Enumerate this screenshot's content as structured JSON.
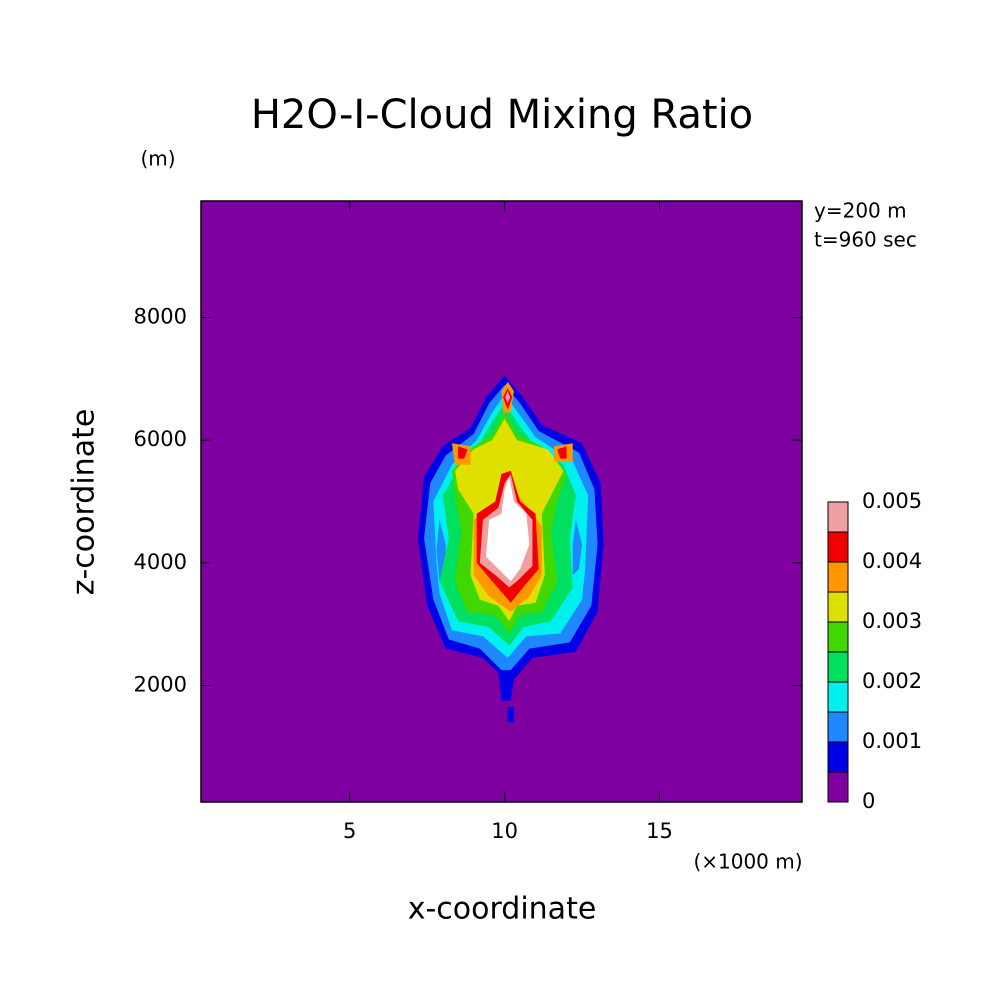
{
  "chart_data": {
    "type": "contour",
    "title": "H2O-I-Cloud Mixing Ratio",
    "x_label": "x-coordinate",
    "y_label": "z-coordinate",
    "x_unit": "(×1000 m)",
    "y_unit": "(m)",
    "annotations": [
      "y=200 m",
      "t=960 sec"
    ],
    "xlim": [
      0.2,
      19.6
    ],
    "ylim": [
      100,
      9900
    ],
    "xticks": [
      5,
      10,
      15
    ],
    "yticks": [
      2000,
      4000,
      6000,
      8000
    ],
    "levels": [
      0,
      0.0005,
      0.001,
      0.0015,
      0.002,
      0.0025,
      0.003,
      0.0035,
      0.004,
      0.0045,
      0.005
    ],
    "colors": [
      "#7f00a0",
      "#0000e6",
      "#1e88ff",
      "#00f0f0",
      "#00e060",
      "#40d800",
      "#e0e000",
      "#ff9800",
      "#f00000",
      "#f0a0a0",
      "#ffffff"
    ],
    "colorbar_ticks": [
      0,
      0.001,
      0.002,
      0.003,
      0.004,
      0.005
    ],
    "contours": [
      {
        "level": 0.0005,
        "points": [
          [
            10,
            7050
          ],
          [
            10.6,
            6700
          ],
          [
            11.2,
            6250
          ],
          [
            12.5,
            5950
          ],
          [
            13.1,
            5300
          ],
          [
            13.2,
            4300
          ],
          [
            13,
            3200
          ],
          [
            12.3,
            2550
          ],
          [
            10.9,
            2450
          ],
          [
            10.3,
            2100
          ],
          [
            10.2,
            1750
          ],
          [
            9.9,
            1750
          ],
          [
            9.8,
            2200
          ],
          [
            9.3,
            2450
          ],
          [
            8.1,
            2600
          ],
          [
            7.5,
            3300
          ],
          [
            7.2,
            4400
          ],
          [
            7.4,
            5400
          ],
          [
            8,
            5900
          ],
          [
            8.9,
            6200
          ],
          [
            9.4,
            6700
          ]
        ]
      },
      {
        "level": 0.0005,
        "points": [
          [
            10.1,
            1650
          ],
          [
            10.3,
            1650
          ],
          [
            10.3,
            1400
          ],
          [
            10.1,
            1400
          ]
        ]
      },
      {
        "level": 0.001,
        "points": [
          [
            10,
            6900
          ],
          [
            10.5,
            6600
          ],
          [
            11.1,
            6150
          ],
          [
            12.4,
            5800
          ],
          [
            12.9,
            5200
          ],
          [
            13,
            4300
          ],
          [
            12.8,
            3300
          ],
          [
            12.1,
            2700
          ],
          [
            10.8,
            2600
          ],
          [
            10.2,
            2250
          ],
          [
            9.9,
            2250
          ],
          [
            9.2,
            2600
          ],
          [
            8.2,
            2750
          ],
          [
            7.7,
            3400
          ],
          [
            7.4,
            4400
          ],
          [
            7.6,
            5300
          ],
          [
            8.1,
            5750
          ],
          [
            9,
            6100
          ],
          [
            9.5,
            6600
          ]
        ]
      },
      {
        "level": 0.0015,
        "points": [
          [
            10,
            6750
          ],
          [
            10.5,
            6400
          ],
          [
            11,
            6050
          ],
          [
            12.2,
            5650
          ],
          [
            12.7,
            5100
          ],
          [
            12.6,
            3900
          ],
          [
            12.5,
            3400
          ],
          [
            11.8,
            2850
          ],
          [
            10.7,
            2800
          ],
          [
            10.1,
            2450
          ],
          [
            9.3,
            2800
          ],
          [
            8.3,
            2900
          ],
          [
            7.9,
            3500
          ],
          [
            7.8,
            4000
          ],
          [
            7.7,
            5000
          ],
          [
            8.3,
            5600
          ],
          [
            9.1,
            6000
          ],
          [
            9.6,
            6450
          ]
        ]
      },
      {
        "level": 0.001,
        "points": [
          [
            7.9,
            4700
          ],
          [
            8.1,
            4300
          ],
          [
            8.1,
            3900
          ],
          [
            7.9,
            3700
          ],
          [
            7.8,
            4200
          ]
        ]
      },
      {
        "level": 0.001,
        "points": [
          [
            12.3,
            4700
          ],
          [
            12.5,
            4300
          ],
          [
            12.4,
            3900
          ],
          [
            12.2,
            3800
          ],
          [
            12.2,
            4300
          ]
        ]
      },
      {
        "level": 0.002,
        "points": [
          [
            10,
            6600
          ],
          [
            10.4,
            6300
          ],
          [
            10.9,
            5950
          ],
          [
            11.9,
            5600
          ],
          [
            12.3,
            5100
          ],
          [
            12.1,
            4400
          ],
          [
            12.2,
            3600
          ],
          [
            11.5,
            3050
          ],
          [
            10.6,
            2950
          ],
          [
            10.15,
            2650
          ],
          [
            9.5,
            2950
          ],
          [
            8.5,
            3050
          ],
          [
            7.9,
            3700
          ],
          [
            8.2,
            4400
          ],
          [
            8,
            5100
          ],
          [
            8.6,
            5600
          ],
          [
            9.2,
            5950
          ],
          [
            9.6,
            6300
          ]
        ]
      },
      {
        "level": 0.0025,
        "points": [
          [
            10,
            6450
          ],
          [
            10.4,
            6100
          ],
          [
            11.2,
            5900
          ],
          [
            12,
            5450
          ],
          [
            11.7,
            5000
          ],
          [
            11.5,
            4500
          ],
          [
            11.7,
            3700
          ],
          [
            11.2,
            3200
          ],
          [
            10.5,
            3150
          ],
          [
            10.15,
            2850
          ],
          [
            9.7,
            3150
          ],
          [
            8.8,
            3200
          ],
          [
            8.4,
            3700
          ],
          [
            8.6,
            4500
          ],
          [
            8.4,
            5100
          ],
          [
            8.3,
            5500
          ],
          [
            9,
            5900
          ],
          [
            9.6,
            6100
          ]
        ]
      },
      {
        "level": 0.003,
        "points": [
          [
            10,
            6350
          ],
          [
            10.4,
            6000
          ],
          [
            11.4,
            5850
          ],
          [
            11.9,
            5500
          ],
          [
            11.6,
            5200
          ],
          [
            11.2,
            4800
          ],
          [
            11.3,
            3800
          ],
          [
            11,
            3350
          ],
          [
            10.4,
            3300
          ],
          [
            10.15,
            3050
          ],
          [
            9.8,
            3300
          ],
          [
            9.2,
            3400
          ],
          [
            8.9,
            3800
          ],
          [
            9,
            4800
          ],
          [
            8.5,
            5200
          ],
          [
            8.4,
            5500
          ],
          [
            9,
            5850
          ],
          [
            9.6,
            6000
          ]
        ]
      },
      {
        "level": 0.0035,
        "points": [
          [
            10.15,
            5300
          ],
          [
            10.6,
            5000
          ],
          [
            11.2,
            4600
          ],
          [
            11.2,
            3800
          ],
          [
            10.8,
            3450
          ],
          [
            10.2,
            3200
          ],
          [
            9.5,
            3450
          ],
          [
            9,
            3800
          ],
          [
            9,
            4700
          ],
          [
            9.7,
            5000
          ]
        ]
      },
      {
        "level": 0.0035,
        "points": [
          [
            8.3,
            5950
          ],
          [
            8.9,
            5900
          ],
          [
            8.9,
            5600
          ],
          [
            8.4,
            5600
          ]
        ]
      },
      {
        "level": 0.0035,
        "points": [
          [
            11.6,
            5900
          ],
          [
            12.2,
            5950
          ],
          [
            12.2,
            5650
          ],
          [
            11.6,
            5650
          ]
        ]
      },
      {
        "level": 0.0035,
        "points": [
          [
            10.1,
            6950
          ],
          [
            10.3,
            6800
          ],
          [
            10.2,
            6450
          ],
          [
            9.95,
            6450
          ],
          [
            9.9,
            6800
          ]
        ]
      },
      {
        "level": 0.004,
        "points": [
          [
            10.2,
            5500
          ],
          [
            10.5,
            5000
          ],
          [
            11,
            4800
          ],
          [
            11.1,
            3900
          ],
          [
            10.6,
            3600
          ],
          [
            10.2,
            3350
          ],
          [
            9.6,
            3700
          ],
          [
            9.1,
            4000
          ],
          [
            9.1,
            4800
          ],
          [
            9.7,
            5000
          ],
          [
            9.9,
            5450
          ]
        ]
      },
      {
        "level": 0.004,
        "points": [
          [
            8.5,
            5900
          ],
          [
            8.8,
            5850
          ],
          [
            8.7,
            5700
          ],
          [
            8.5,
            5700
          ]
        ]
      },
      {
        "level": 0.004,
        "points": [
          [
            11.7,
            5850
          ],
          [
            12,
            5900
          ],
          [
            12,
            5700
          ],
          [
            11.8,
            5700
          ]
        ]
      },
      {
        "level": 0.004,
        "points": [
          [
            10.1,
            6850
          ],
          [
            10.25,
            6700
          ],
          [
            10.1,
            6500
          ],
          [
            9.95,
            6700
          ]
        ]
      },
      {
        "level": 0.0045,
        "points": [
          [
            10.2,
            5450
          ],
          [
            10.4,
            5000
          ],
          [
            10.9,
            4700
          ],
          [
            10.9,
            3950
          ],
          [
            10.4,
            3700
          ],
          [
            10.15,
            3600
          ],
          [
            9.7,
            3800
          ],
          [
            9.2,
            4000
          ],
          [
            9.3,
            4700
          ],
          [
            9.8,
            4900
          ],
          [
            10,
            5300
          ]
        ]
      },
      {
        "level": 0.0045,
        "points": [
          [
            10.1,
            6800
          ],
          [
            10.18,
            6700
          ],
          [
            10.1,
            6600
          ],
          [
            10.02,
            6700
          ]
        ]
      },
      {
        "level": 0.005,
        "points": [
          [
            10.15,
            5400
          ],
          [
            10.3,
            5000
          ],
          [
            10.7,
            4800
          ],
          [
            10.8,
            4300
          ],
          [
            10.5,
            3900
          ],
          [
            10.2,
            3700
          ],
          [
            9.8,
            3900
          ],
          [
            9.4,
            4100
          ],
          [
            9.5,
            4700
          ],
          [
            9.9,
            4800
          ],
          [
            10,
            5200
          ]
        ]
      }
    ]
  }
}
